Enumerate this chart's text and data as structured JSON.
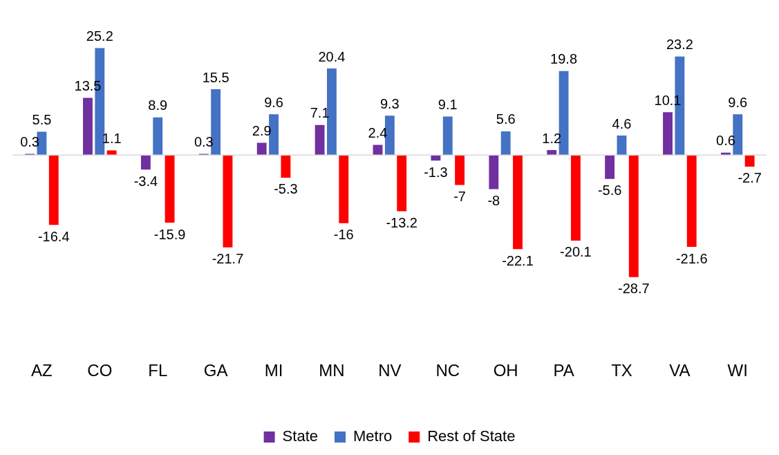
{
  "chart_data": {
    "type": "bar",
    "categories": [
      "AZ",
      "CO",
      "FL",
      "GA",
      "MI",
      "MN",
      "NV",
      "NC",
      "OH",
      "PA",
      "TX",
      "VA",
      "WI"
    ],
    "series": [
      {
        "name": "State",
        "color": "#7030a0",
        "values": [
          0.3,
          13.5,
          -3.4,
          0.3,
          2.9,
          7.1,
          2.4,
          -1.3,
          -8,
          1.2,
          -5.6,
          10.1,
          0.6
        ]
      },
      {
        "name": "Metro",
        "color": "#4472c4",
        "values": [
          5.5,
          25.2,
          8.9,
          15.5,
          9.6,
          20.4,
          9.3,
          9.1,
          5.6,
          19.8,
          4.6,
          23.2,
          9.6
        ]
      },
      {
        "name": "Rest of State",
        "color": "#ff0000",
        "values": [
          -16.4,
          1.1,
          -15.9,
          -21.7,
          -5.3,
          -16,
          -13.2,
          -7,
          -22.1,
          -20.1,
          -28.7,
          -21.6,
          -2.7
        ]
      }
    ],
    "data_labels": true,
    "legend": "bottom",
    "grid": false
  }
}
